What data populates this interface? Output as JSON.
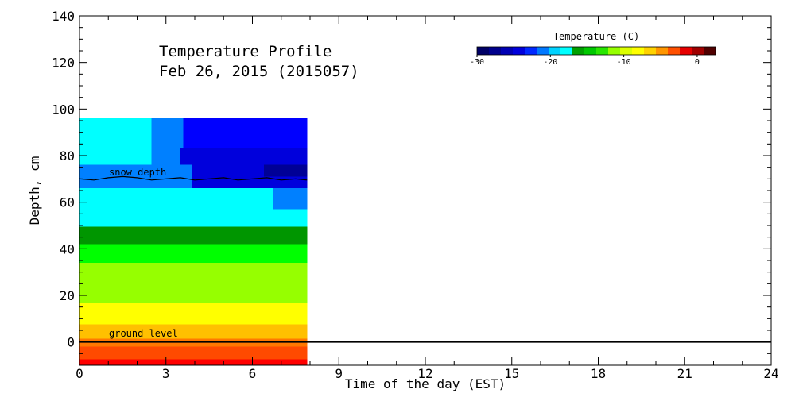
{
  "chart_data": {
    "type": "heatmap",
    "title_line1": "Temperature Profile",
    "title_line2": "Feb 26, 2015 (2015057)",
    "xlabel": "Time of the day (EST)",
    "ylabel": "Depth, cm",
    "xlim": [
      0,
      24
    ],
    "ylim": [
      -10,
      140
    ],
    "x_ticks": [
      "0",
      "3",
      "6",
      "9",
      "12",
      "15",
      "18",
      "21",
      "24"
    ],
    "y_ticks": [
      "0",
      "20",
      "40",
      "60",
      "80",
      "100",
      "120",
      "140"
    ],
    "grid": false,
    "colorbar": {
      "label": "Temperature (C)",
      "range": [
        -30,
        2.5
      ],
      "tick_labels": [
        "-30",
        "-20",
        "-10",
        "0"
      ],
      "colors": [
        "#000066",
        "#00008c",
        "#0000b4",
        "#0000dc",
        "#0028ff",
        "#0078ff",
        "#00d2ff",
        "#00ffff",
        "#00a000",
        "#00c800",
        "#28e600",
        "#96ff00",
        "#dcff00",
        "#ffff00",
        "#ffd200",
        "#ff9600",
        "#ff5000",
        "#e60000",
        "#a00000",
        "#500000"
      ]
    },
    "annotations": {
      "snow_depth": "snow depth",
      "ground_level": "ground level"
    },
    "data_end_hour": 7.9,
    "bands": [
      {
        "y0": -10,
        "y1": -7.5,
        "segments": [
          {
            "x0": 0,
            "x1": 7.9,
            "color": "#ff0000"
          }
        ]
      },
      {
        "y0": -7.5,
        "y1": -2,
        "segments": [
          {
            "x0": 0,
            "x1": 7.9,
            "color": "#ff4a00"
          }
        ]
      },
      {
        "y0": -2,
        "y1": 1.5,
        "segments": [
          {
            "x0": 0,
            "x1": 7.9,
            "color": "#ff7800"
          }
        ]
      },
      {
        "y0": 1.5,
        "y1": 7.5,
        "segments": [
          {
            "x0": 0,
            "x1": 7.9,
            "color": "#ffc000"
          }
        ]
      },
      {
        "y0": 7.5,
        "y1": 17,
        "segments": [
          {
            "x0": 0,
            "x1": 7.9,
            "color": "#ffff00"
          }
        ]
      },
      {
        "y0": 17,
        "y1": 34,
        "segments": [
          {
            "x0": 0,
            "x1": 7.9,
            "color": "#96ff00"
          }
        ]
      },
      {
        "y0": 34,
        "y1": 42,
        "segments": [
          {
            "x0": 0,
            "x1": 7.9,
            "color": "#00ff00"
          }
        ]
      },
      {
        "y0": 42,
        "y1": 49.5,
        "segments": [
          {
            "x0": 0,
            "x1": 7.9,
            "color": "#009600"
          }
        ]
      },
      {
        "y0": 49.5,
        "y1": 57,
        "segments": [
          {
            "x0": 0,
            "x1": 7.9,
            "color": "#00ffff"
          }
        ]
      },
      {
        "y0": 57,
        "y1": 66,
        "segments": [
          {
            "x0": 0,
            "x1": 6.7,
            "color": "#00ffff"
          },
          {
            "x0": 6.7,
            "x1": 7.9,
            "color": "#0080ff"
          }
        ]
      },
      {
        "y0": 66,
        "y1": 71,
        "segments": [
          {
            "x0": 0,
            "x1": 3.9,
            "color": "#0080ff"
          },
          {
            "x0": 3.9,
            "x1": 7.9,
            "color": "#0000dc"
          }
        ]
      },
      {
        "y0": 71,
        "y1": 76,
        "segments": [
          {
            "x0": 0,
            "x1": 3.9,
            "color": "#0080ff"
          },
          {
            "x0": 3.9,
            "x1": 6.4,
            "color": "#0000dc"
          },
          {
            "x0": 6.4,
            "x1": 7.9,
            "color": "#000096"
          }
        ]
      },
      {
        "y0": 76,
        "y1": 83,
        "segments": [
          {
            "x0": 0,
            "x1": 2.5,
            "color": "#00ffff"
          },
          {
            "x0": 2.5,
            "x1": 3.5,
            "color": "#0080ff"
          },
          {
            "x0": 3.5,
            "x1": 7.9,
            "color": "#0000dc"
          }
        ]
      },
      {
        "y0": 83,
        "y1": 96,
        "segments": [
          {
            "x0": 0,
            "x1": 2.5,
            "color": "#00ffff"
          },
          {
            "x0": 2.5,
            "x1": 3.6,
            "color": "#0080ff"
          },
          {
            "x0": 3.6,
            "x1": 7.9,
            "color": "#0000ff"
          }
        ]
      }
    ],
    "snow_depth_line": {
      "x": [
        0,
        0.5,
        1,
        1.5,
        2,
        2.5,
        3,
        3.5,
        4,
        4.5,
        5,
        5.5,
        6,
        6.5,
        7,
        7.5,
        7.9
      ],
      "y": [
        70,
        69.5,
        70.5,
        71,
        70.5,
        69.5,
        70,
        70.5,
        69.5,
        70,
        70.5,
        69.5,
        70,
        70.5,
        69.5,
        70,
        69.5
      ]
    },
    "ground_level_y": 0
  }
}
